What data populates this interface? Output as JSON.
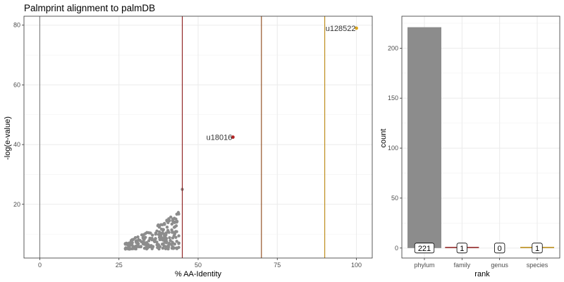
{
  "chart_data": [
    {
      "type": "scatter",
      "title": "Palmprint alignment to palmDB",
      "xlabel": "% AA-Identity",
      "ylabel": "-log(e-value)",
      "xlim": [
        -5,
        105
      ],
      "ylim": [
        2,
        83
      ],
      "xticks": [
        0,
        25,
        50,
        75,
        100
      ],
      "yticks": [
        20,
        40,
        60,
        80
      ],
      "grid": true,
      "vlines": [
        {
          "x": 0,
          "color": "#808080"
        },
        {
          "x": 45,
          "color": "#8b1a1a"
        },
        {
          "x": 70,
          "color": "#8b4513"
        },
        {
          "x": 90,
          "color": "#b8860b"
        }
      ],
      "highlight_points": [
        {
          "x": 61,
          "y": 42.5,
          "label": "u18016",
          "color": "#b22222"
        },
        {
          "x": 100,
          "y": 79,
          "label": "u128522",
          "color": "#daa520"
        }
      ],
      "outlier_points": [
        {
          "x": 45,
          "y": 25
        }
      ],
      "cloud_color": "#8c8c8c",
      "cloud_count": 220,
      "cloud_x_range": [
        27,
        44
      ],
      "cloud_y_range": [
        5,
        17.5
      ]
    },
    {
      "type": "bar",
      "xlabel": "rank",
      "ylabel": "count",
      "categories": [
        "phylum",
        "family",
        "genus",
        "species"
      ],
      "values": [
        221,
        1,
        0,
        1
      ],
      "labels": [
        "221",
        "1",
        "0",
        "1"
      ],
      "colors": [
        "#8c8c8c",
        "#8b1a1a",
        "#8b4513",
        "#b8860b"
      ],
      "ylim": [
        -10,
        232
      ],
      "yticks": [
        0,
        50,
        100,
        150,
        200
      ],
      "grid": true
    }
  ]
}
